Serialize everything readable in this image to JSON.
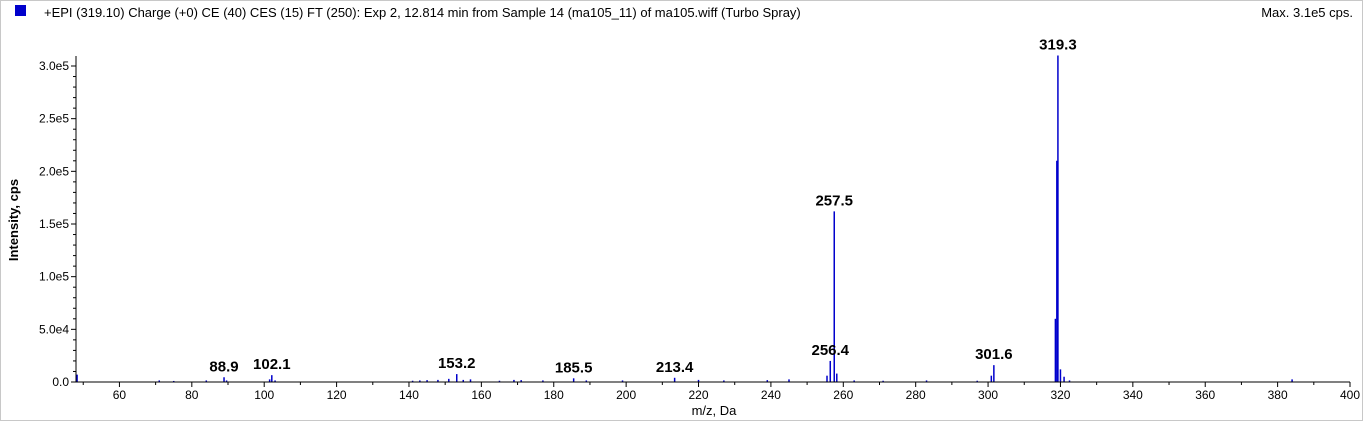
{
  "header": {
    "title": "+EPI (319.10) Charge (+0) CE (40) CES (15) FT (250): Exp 2, 12.814 min from Sample 14 (ma105_11) of ma105.wiff (Turbo Spray)",
    "max_text": "Max. 3.1e5 cps.",
    "legend_color": "#0000cc"
  },
  "chart_data": {
    "type": "bar",
    "xlabel": "m/z, Da",
    "ylabel": "Intensity, cps",
    "xlim": [
      48,
      400
    ],
    "ylim": [
      0,
      310000
    ],
    "grid": false,
    "series_color": "#0000cc",
    "x_ticks": [
      60,
      80,
      100,
      120,
      140,
      160,
      180,
      200,
      220,
      240,
      260,
      280,
      300,
      320,
      340,
      360,
      380,
      400
    ],
    "x_tick_labels": [
      "60",
      "80",
      "100",
      "120",
      "140",
      "160",
      "180",
      "200",
      "220",
      "240",
      "260",
      "280",
      "300",
      "320",
      "340",
      "360",
      "380",
      "400"
    ],
    "y_ticks": [
      0,
      50000,
      100000,
      150000,
      200000,
      250000,
      300000
    ],
    "y_tick_labels": [
      "0.0",
      "5.0e4",
      "1.0e5",
      "1.5e5",
      "2.0e5",
      "2.5e5",
      "3.0e5"
    ],
    "peaks": [
      {
        "x": 48.3,
        "y": 7000
      },
      {
        "x": 71.0,
        "y": 1500
      },
      {
        "x": 75.0,
        "y": 1000
      },
      {
        "x": 84.0,
        "y": 1500
      },
      {
        "x": 88.9,
        "y": 4500
      },
      {
        "x": 89.6,
        "y": 1500
      },
      {
        "x": 101.5,
        "y": 2500
      },
      {
        "x": 102.1,
        "y": 6500
      },
      {
        "x": 103.0,
        "y": 1500
      },
      {
        "x": 141.0,
        "y": 1200
      },
      {
        "x": 143.0,
        "y": 1500
      },
      {
        "x": 145.0,
        "y": 1800
      },
      {
        "x": 148.0,
        "y": 2000
      },
      {
        "x": 151.0,
        "y": 3000
      },
      {
        "x": 153.2,
        "y": 7500
      },
      {
        "x": 155.0,
        "y": 2000
      },
      {
        "x": 157.0,
        "y": 2500
      },
      {
        "x": 165.0,
        "y": 1200
      },
      {
        "x": 169.0,
        "y": 2000
      },
      {
        "x": 171.0,
        "y": 1800
      },
      {
        "x": 177.0,
        "y": 1500
      },
      {
        "x": 185.5,
        "y": 3500
      },
      {
        "x": 189.0,
        "y": 1500
      },
      {
        "x": 199.0,
        "y": 1500
      },
      {
        "x": 213.4,
        "y": 4000
      },
      {
        "x": 220.0,
        "y": 2000
      },
      {
        "x": 227.0,
        "y": 1500
      },
      {
        "x": 239.0,
        "y": 1800
      },
      {
        "x": 245.0,
        "y": 2500
      },
      {
        "x": 255.5,
        "y": 6000
      },
      {
        "x": 256.4,
        "y": 20000
      },
      {
        "x": 257.5,
        "y": 162000
      },
      {
        "x": 258.2,
        "y": 8000
      },
      {
        "x": 263.0,
        "y": 1500
      },
      {
        "x": 271.0,
        "y": 1200
      },
      {
        "x": 283.0,
        "y": 1500
      },
      {
        "x": 297.0,
        "y": 1200
      },
      {
        "x": 300.9,
        "y": 6000
      },
      {
        "x": 301.6,
        "y": 16000
      },
      {
        "x": 318.6,
        "y": 60000
      },
      {
        "x": 319.0,
        "y": 210000
      },
      {
        "x": 319.3,
        "y": 310000
      },
      {
        "x": 320.0,
        "y": 12000
      },
      {
        "x": 321.0,
        "y": 5000
      },
      {
        "x": 322.5,
        "y": 1500
      },
      {
        "x": 384.0,
        "y": 2500
      }
    ],
    "annotations": [
      {
        "x": 88.9,
        "y": 4500,
        "label": "88.9"
      },
      {
        "x": 102.1,
        "y": 6500,
        "label": "102.1"
      },
      {
        "x": 153.2,
        "y": 7500,
        "label": "153.2"
      },
      {
        "x": 185.5,
        "y": 3500,
        "label": "185.5"
      },
      {
        "x": 213.4,
        "y": 4000,
        "label": "213.4"
      },
      {
        "x": 256.4,
        "y": 20000,
        "label": "256.4"
      },
      {
        "x": 257.5,
        "y": 162000,
        "label": "257.5"
      },
      {
        "x": 301.6,
        "y": 16000,
        "label": "301.6"
      },
      {
        "x": 319.3,
        "y": 310000,
        "label": "319.3"
      }
    ]
  }
}
